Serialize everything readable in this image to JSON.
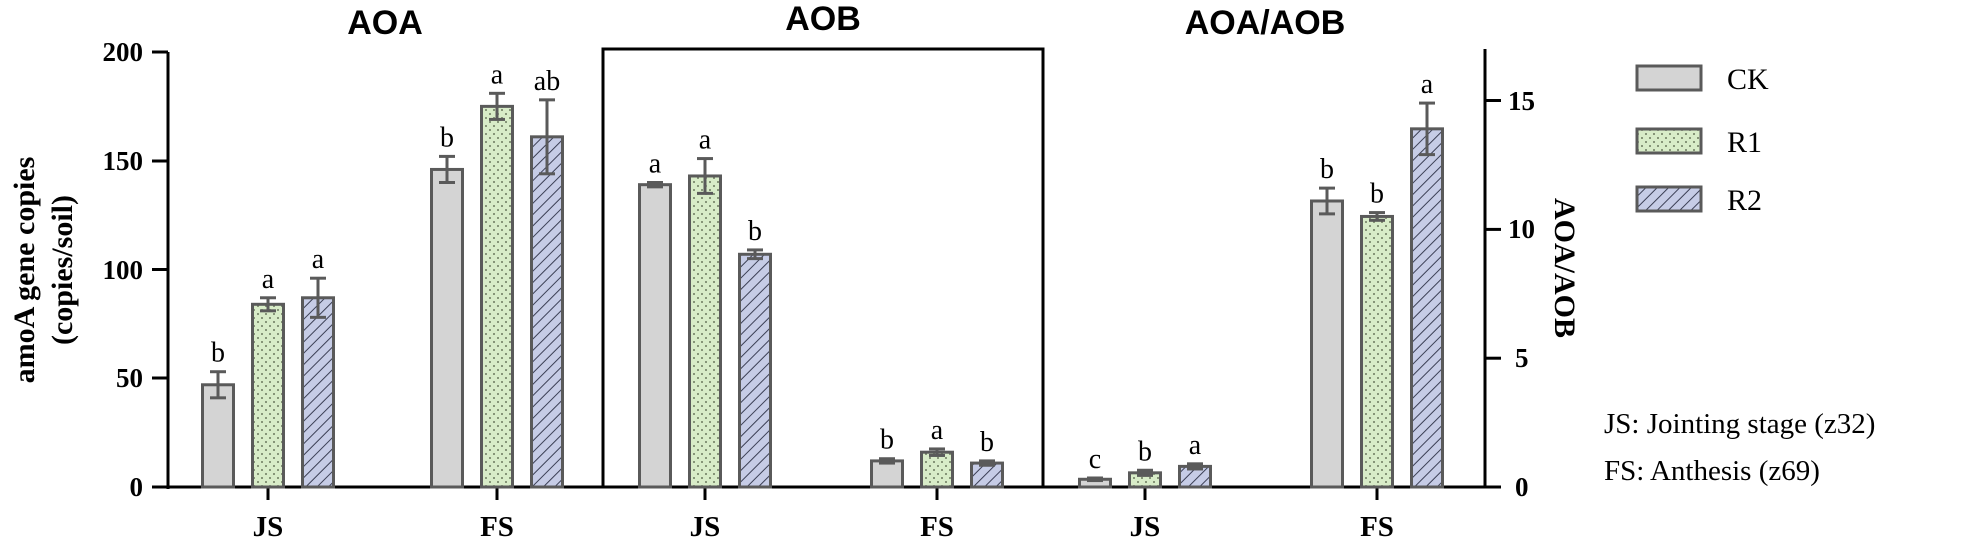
{
  "chart_data": {
    "type": "bar",
    "series_names": [
      "CK",
      "R1",
      "R2"
    ],
    "colors": {
      "CK": "#d4d4d4",
      "R1": "#d8ecc8",
      "R2": "#c6cce6",
      "edge": "#5a5a5a"
    },
    "left_axis": {
      "label_line1": "amoA gene copies",
      "label_line2": "(copies/soil)",
      "ylim": [
        0,
        200
      ],
      "ticks": [
        "0",
        "50",
        "100",
        "150",
        "200"
      ]
    },
    "right_axis": {
      "label": "AOA/AOB",
      "ylim": [
        0,
        17
      ],
      "ticks": [
        "0",
        "5",
        "10",
        "15"
      ]
    },
    "panels": [
      {
        "title": "AOA",
        "axis": "left",
        "categories": [
          "JS",
          "FS"
        ],
        "series": [
          {
            "name": "CK",
            "values": [
              47,
              146
            ],
            "errors": [
              6,
              6
            ],
            "labels": [
              "b",
              "b"
            ]
          },
          {
            "name": "R1",
            "values": [
              84,
              175
            ],
            "errors": [
              3,
              6
            ],
            "labels": [
              "a",
              "a"
            ]
          },
          {
            "name": "R2",
            "values": [
              87,
              161
            ],
            "errors": [
              9,
              17
            ],
            "labels": [
              "a",
              "ab"
            ]
          }
        ]
      },
      {
        "title": "AOB",
        "axis": "left",
        "categories": [
          "JS",
          "FS"
        ],
        "series": [
          {
            "name": "CK",
            "values": [
              139,
              12
            ],
            "errors": [
              1,
              1
            ],
            "labels": [
              "a",
              "b"
            ]
          },
          {
            "name": "R1",
            "values": [
              143,
              16
            ],
            "errors": [
              8,
              1.5
            ],
            "labels": [
              "a",
              "a"
            ]
          },
          {
            "name": "R2",
            "values": [
              107,
              11
            ],
            "errors": [
              2,
              1
            ],
            "labels": [
              "b",
              "b"
            ]
          }
        ]
      },
      {
        "title": "AOA/AOB",
        "axis": "right",
        "categories": [
          "JS",
          "FS"
        ],
        "series": [
          {
            "name": "CK",
            "values": [
              0.3,
              11.1
            ],
            "errors": [
              0.05,
              0.5
            ],
            "labels": [
              "c",
              "b"
            ]
          },
          {
            "name": "R1",
            "values": [
              0.55,
              10.5
            ],
            "errors": [
              0.1,
              0.15
            ],
            "labels": [
              "b",
              "b"
            ]
          },
          {
            "name": "R2",
            "values": [
              0.8,
              13.9
            ],
            "errors": [
              0.1,
              1.0
            ],
            "labels": [
              "a",
              "a"
            ]
          }
        ]
      }
    ],
    "legend_placement": "right",
    "notes": [
      "JS: Jointing stage (z32)",
      "FS: Anthesis (z69)"
    ],
    "grid": false
  }
}
